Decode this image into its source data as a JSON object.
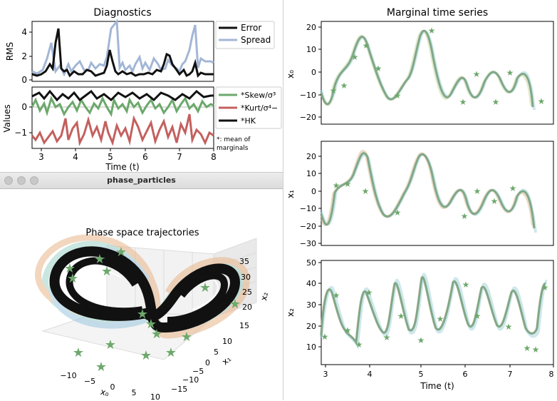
{
  "diagnostics": {
    "title": "Diagnostics",
    "rms_ylabel": "RMS",
    "values_ylabel": "Values",
    "xlabel": "Time (t)",
    "x_ticks": [
      "3",
      "4",
      "5",
      "6",
      "7",
      "8"
    ],
    "rms_yticks": [
      "0",
      "2",
      "4"
    ],
    "val_yticks": [
      "0",
      "−1"
    ],
    "legend_top": [
      {
        "label": "Error",
        "color": "#111111"
      },
      {
        "label": "Spread",
        "color": "#a3b6d6"
      }
    ],
    "legend_bottom": [
      {
        "label": "*Skew/σ³",
        "color": "#6ba86b"
      },
      {
        "label": "*Kurt/σ⁴−",
        "color": "#c3605e"
      },
      {
        "label": "*HK",
        "color": "#111111"
      }
    ],
    "footnote_1": "*: mean of",
    "footnote_2": "marginals"
  },
  "phase_window": {
    "window_title": "phase_particles",
    "plot_title": "Phase space trajectories",
    "x0_label": "x₀",
    "x1_label": "x₁",
    "x2_label": "x₂",
    "x0_ticks": [
      "−10",
      "−5",
      "0",
      "5",
      "10"
    ],
    "x1_ticks": [
      "−15",
      "−10",
      "−5",
      "0",
      "5",
      "10"
    ],
    "x2_ticks": [
      "15",
      "20",
      "25",
      "30",
      "35"
    ]
  },
  "marginals": {
    "title": "Marginal time series",
    "xlabel": "Time (t)",
    "x_ticks": [
      "3",
      "4",
      "5",
      "6",
      "7",
      "8"
    ],
    "panels": [
      {
        "ylabel": "x₀",
        "yticks": [
          "20",
          "10",
          "0",
          "−10",
          "−20"
        ]
      },
      {
        "ylabel": "x₁",
        "yticks": [
          "20",
          "10",
          "0",
          "−10",
          "−20",
          "−30"
        ]
      },
      {
        "ylabel": "x₂",
        "yticks": [
          "50",
          "40",
          "30",
          "20",
          "10"
        ]
      }
    ]
  },
  "colors": {
    "ensemble_green": "#6ba86b",
    "ensemble_red": "#c3605e",
    "error_black": "#111111",
    "spread_blue": "#a3b6d6",
    "star_green": "#6ea86c"
  }
}
